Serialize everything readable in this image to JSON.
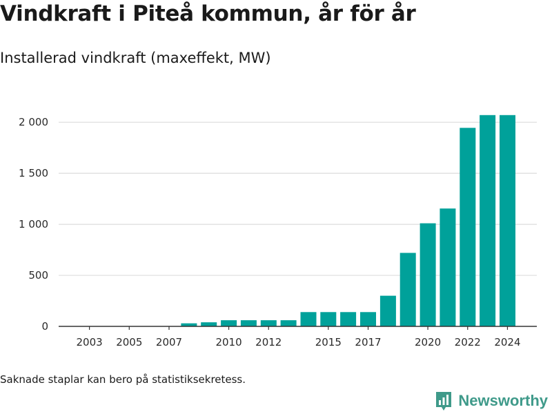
{
  "header": {
    "title": "Vindkraft i Piteå kommun, år för år",
    "subtitle": "Installerad vindkraft (maxeffekt, MW)"
  },
  "footer": {
    "note": "Saknade staplar kan bero på statistiksekretess.",
    "brand_name": "Newsworthy",
    "brand_icon": "newsworthy-logo-icon",
    "brand_color": "#3f9a8a"
  },
  "chart_data": {
    "type": "bar",
    "title": "Vindkraft i Piteå kommun, år för år",
    "subtitle": "Installerad vindkraft (maxeffekt, MW)",
    "xlabel": "",
    "ylabel": "",
    "categories": [
      2003,
      2004,
      2005,
      2006,
      2007,
      2008,
      2009,
      2010,
      2011,
      2012,
      2013,
      2014,
      2015,
      2016,
      2017,
      2018,
      2019,
      2020,
      2021,
      2022,
      2023,
      2024
    ],
    "values": [
      0,
      0,
      0,
      0,
      0,
      30,
      40,
      60,
      60,
      60,
      60,
      140,
      140,
      140,
      140,
      300,
      720,
      1010,
      1155,
      1945,
      2070,
      2070
    ],
    "x_tick_labels": [
      "2003",
      "2005",
      "2007",
      "2010",
      "2012",
      "2015",
      "2017",
      "2020",
      "2022",
      "2024"
    ],
    "y_tick_values": [
      0,
      500,
      1000,
      1500,
      2000
    ],
    "y_tick_labels": [
      "0",
      "500",
      "1 000",
      "1 500",
      "2 000"
    ],
    "ylim": [
      0,
      2150
    ],
    "grid": true,
    "bar_color": "#00a19a",
    "grid_color": "#dcdcdc",
    "axis_color": "#333333"
  }
}
